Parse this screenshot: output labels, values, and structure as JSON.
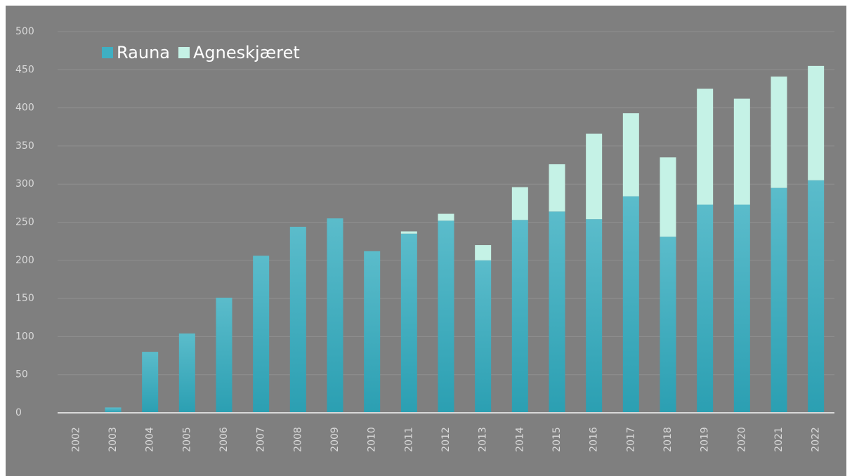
{
  "chart_data": {
    "type": "stacked_bar",
    "categories": [
      "2002",
      "2003",
      "2004",
      "2005",
      "2006",
      "2007",
      "2008",
      "2009",
      "2010",
      "2011",
      "2012",
      "2013",
      "2014",
      "2015",
      "2016",
      "2017",
      "2018",
      "2019",
      "2020",
      "2021",
      "2022"
    ],
    "series": [
      {
        "name": "Rauna",
        "color": "#3fafc2",
        "values": [
          0,
          7,
          80,
          104,
          151,
          206,
          244,
          255,
          212,
          235,
          252,
          200,
          253,
          264,
          254,
          284,
          231,
          273,
          273,
          295,
          305
        ]
      },
      {
        "name": "Agneskjæret",
        "color": "#c5f2e6",
        "values": [
          0,
          0,
          0,
          0,
          0,
          0,
          0,
          0,
          0,
          3,
          9,
          20,
          43,
          62,
          112,
          109,
          104,
          152,
          139,
          146,
          150
        ]
      }
    ],
    "ylim": [
      0,
      500
    ],
    "yticks": [
      0,
      50,
      100,
      150,
      200,
      250,
      300,
      350,
      400,
      450,
      500
    ],
    "grid": true,
    "legend": "upper left"
  }
}
